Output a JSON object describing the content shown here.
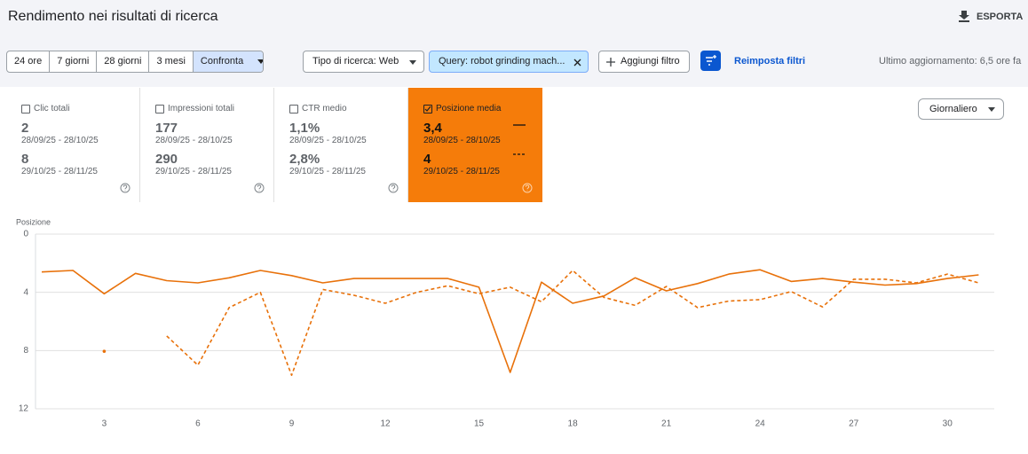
{
  "header": {
    "title": "Rendimento nei risultati di ricerca",
    "export": "ESPORTA"
  },
  "toolbar": {
    "date_ranges": [
      "24 ore",
      "7 giorni",
      "28 giorni",
      "3 mesi",
      "Confronta"
    ],
    "active_index": 4,
    "filters": [
      "Tipo di ricerca: Web",
      "Query: robot grinding mach..."
    ],
    "add_filter": "Aggiungi filtro",
    "reset": "Reimposta filtri",
    "last_update": "Ultimo aggiornamento: 6,5 ore fa"
  },
  "metrics": [
    {
      "label": "Clic totali",
      "value1": "2",
      "range1": "28/09/25 - 28/10/25",
      "value2": "8",
      "range2": "29/10/25 - 28/11/25",
      "selected": false
    },
    {
      "label": "Impressioni totali",
      "value1": "177",
      "range1": "28/09/25 - 28/10/25",
      "value2": "290",
      "range2": "29/10/25 - 28/11/25",
      "selected": false
    },
    {
      "label": "CTR medio",
      "value1": "1,1%",
      "range1": "28/09/25 - 28/10/25",
      "value2": "2,8%",
      "range2": "29/10/25 - 28/11/25",
      "selected": false
    },
    {
      "label": "Posizione media",
      "value1": "3,4",
      "range1": "28/09/25 - 28/10/25",
      "value2": "4",
      "range2": "29/10/25 - 28/11/25",
      "selected": true
    }
  ],
  "granularity": "Giornaliero",
  "chart_data": {
    "type": "line",
    "y_label": "Posizione",
    "x": [
      1,
      2,
      3,
      4,
      5,
      6,
      7,
      8,
      9,
      10,
      11,
      12,
      13,
      14,
      15,
      16,
      17,
      18,
      19,
      20,
      21,
      22,
      23,
      24,
      25,
      26,
      27,
      28,
      29,
      30,
      31
    ],
    "xlim": [
      0.8,
      31.5
    ],
    "xticks": [
      3,
      6,
      9,
      12,
      15,
      18,
      21,
      24,
      27,
      30
    ],
    "ylim": [
      0,
      12
    ],
    "yticks": [
      0,
      4,
      8,
      12
    ],
    "y_inverted": true,
    "grid": true,
    "series": [
      {
        "color": "#e8710a",
        "dashed": false,
        "values": [
          2.6,
          2.5,
          4.1,
          2.7,
          3.2,
          3.35,
          3.0,
          2.5,
          2.85,
          3.35,
          3.05,
          3.05,
          3.05,
          3.05,
          3.65,
          9.5,
          3.3,
          4.75,
          4.25,
          3.0,
          3.9,
          3.4,
          2.75,
          2.45,
          3.25,
          3.05,
          3.3,
          3.5,
          3.4,
          3.05,
          2.8
        ]
      },
      {
        "color": "#e8710a",
        "dashed": true,
        "values": [
          null,
          null,
          8.05,
          null,
          7.0,
          9.0,
          5.05,
          4.0,
          9.7,
          3.8,
          4.2,
          4.75,
          4.0,
          3.55,
          4.1,
          3.65,
          4.65,
          2.5,
          4.35,
          4.9,
          3.6,
          5.05,
          4.6,
          4.5,
          3.95,
          5.0,
          3.1,
          3.1,
          3.35,
          2.75,
          3.35
        ]
      }
    ]
  }
}
